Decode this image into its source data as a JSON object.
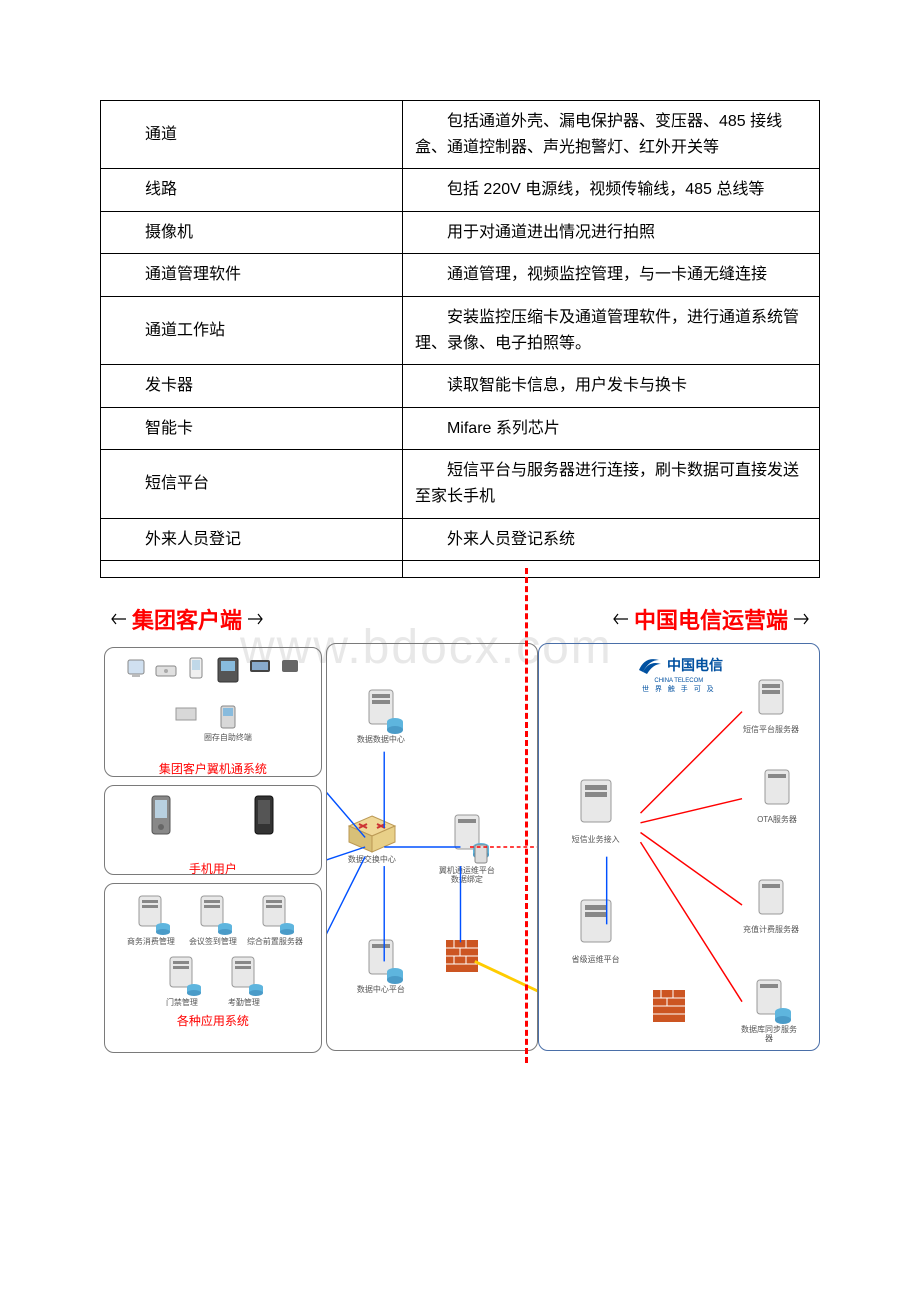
{
  "table": {
    "rows": [
      {
        "name": "通道",
        "desc": "包括通道外壳、漏电保护器、变压器、485 接线盒、通道控制器、声光抱警灯、红外开关等"
      },
      {
        "name": "线路",
        "desc": "包括 220V 电源线，视频传输线，485 总线等"
      },
      {
        "name": "摄像机",
        "desc": "用于对通道进出情况进行拍照"
      },
      {
        "name": "通道管理软件",
        "desc": "通道管理，视频监控管理，与一卡通无缝连接"
      },
      {
        "name": "通道工作站",
        "desc": "安装监控压缩卡及通道管理软件，进行通道系统管理、录像、电子拍照等。"
      },
      {
        "name": "发卡器",
        "desc": "读取智能卡信息，用户发卡与换卡"
      },
      {
        "name": "智能卡",
        "desc": "Mifare 系列芯片"
      },
      {
        "name": "短信平台",
        "desc": "短信平台与服务器进行连接，刷卡数据可直接发送至家长手机"
      },
      {
        "name": "外来人员登记",
        "desc": "外来人员登记系统"
      },
      {
        "name": "",
        "desc": ""
      }
    ]
  },
  "watermark": "www.bdocx.com",
  "diagram": {
    "header_left": "集团客户端",
    "header_right": "中国电信运营端",
    "left_panel_1_title": "集团客户翼机通系统",
    "left_panel_1_devices": [
      "",
      "",
      "",
      "",
      "",
      "",
      "圈存自助终端"
    ],
    "left_panel_2_title": "手机用户",
    "left_panel_3_title": "各种应用系统",
    "left_panel_3_devices": [
      "商务消费管理",
      "会议签到管理",
      "综合前置服务器",
      "门禁管理",
      "考勤管理"
    ],
    "mid_devices": [
      "数据数据中心",
      "数据交换中心",
      "翼机通运维平台数据绑定",
      "数据中心平台"
    ],
    "right_logo": "中国电信",
    "right_logo_en": "CHINA TELECOM",
    "right_logo_sub": "世 界 触 手 可 及",
    "right_devices": [
      "短信平台服务器",
      "短信业务接入",
      "OTA服务器",
      "省级运维平台",
      "充值计费服务器",
      "数据库同步服务器"
    ],
    "firewall_label": "防火墙",
    "colors": {
      "header_red": "#ff0000",
      "panel_border": "#7a7a7a",
      "panel_blue": "#4a6fa8",
      "line_red": "#ff0000",
      "line_blue": "#0050ff",
      "server_body": "#e8e8e8",
      "server_db": "#5eb5de"
    }
  }
}
